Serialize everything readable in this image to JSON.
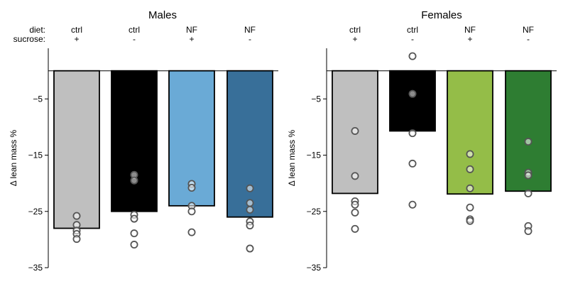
{
  "header": {
    "row_labels": [
      "diet:",
      "sucrose:"
    ]
  },
  "chart_data": [
    {
      "type": "bar",
      "title": "Males",
      "ylabel": "Δ lean mass %",
      "ylim": [
        -35,
        4
      ],
      "yticks": [
        -5,
        -15,
        -25,
        -35
      ],
      "ytick_labels": [
        "−5",
        "−15",
        "−25",
        "−35"
      ],
      "baseline": 0,
      "categories": [
        {
          "diet": "ctrl",
          "sucrose": "+"
        },
        {
          "diet": "ctrl",
          "sucrose": "-"
        },
        {
          "diet": "NF",
          "sucrose": "+"
        },
        {
          "diet": "NF",
          "sucrose": "-"
        }
      ],
      "values": [
        -28.0,
        -25.0,
        -24.0,
        -26.0
      ],
      "bar_colors": [
        "#bfbfbf",
        "#000000",
        "#6aaad6",
        "#386f99"
      ],
      "points": [
        [
          -25.8,
          -27.4,
          -28.4,
          -29.0,
          -29.9
        ],
        [
          -18.5,
          -19.5,
          -25.6,
          -26.3,
          -28.9,
          -30.9
        ],
        [
          -20.1,
          -20.8,
          -24.0,
          -25.0,
          -28.7
        ],
        [
          -20.9,
          -23.5,
          -24.7,
          -26.8,
          -27.5,
          -31.6
        ]
      ]
    },
    {
      "type": "bar",
      "title": "Females",
      "ylabel": "Δ lean mass %",
      "ylim": [
        -35,
        4
      ],
      "yticks": [
        -5,
        -15,
        -25,
        -35
      ],
      "ytick_labels": [
        "−5",
        "−15",
        "−25",
        "−35"
      ],
      "baseline": 0,
      "categories": [
        {
          "diet": "ctrl",
          "sucrose": "+"
        },
        {
          "diet": "ctrl",
          "sucrose": "-"
        },
        {
          "diet": "NF",
          "sucrose": "+"
        },
        {
          "diet": "NF",
          "sucrose": "-"
        }
      ],
      "values": [
        -21.8,
        -10.7,
        -21.9,
        -21.4
      ],
      "bar_colors": [
        "#bfbfbf",
        "#000000",
        "#94bd48",
        "#2e7d32"
      ],
      "points": [
        [
          -10.7,
          -18.7,
          -23.2,
          -23.8,
          -25.2,
          -28.1
        ],
        [
          2.6,
          -4.1,
          -11.1,
          -16.5,
          -23.8
        ],
        [
          -14.8,
          -17.5,
          -20.9,
          -24.3,
          -26.4,
          -26.7
        ],
        [
          -12.6,
          -18.1,
          -18.6,
          -21.8,
          -27.6,
          -28.5
        ]
      ]
    }
  ]
}
